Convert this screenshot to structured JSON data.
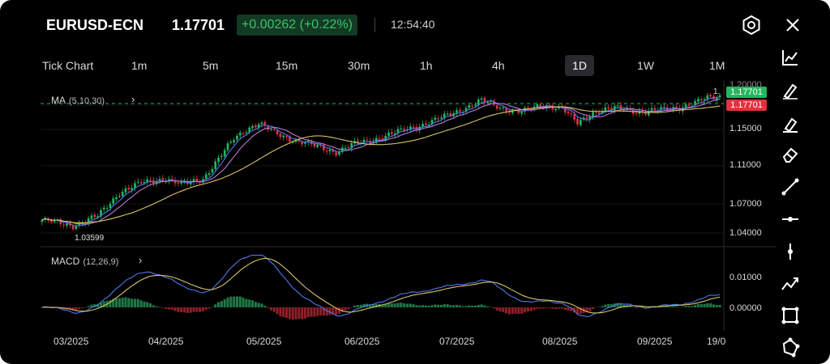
{
  "header": {
    "symbol": "EURUSD-ECN",
    "price": "1.17701",
    "change": "+0.00262 (+0.22%)",
    "time": "12:54:40"
  },
  "timeframes": [
    "Tick Chart",
    "1m",
    "5m",
    "15m",
    "30m",
    "1h",
    "4h",
    "1D",
    "1W",
    "1M"
  ],
  "active_timeframe": "1D",
  "indicators": {
    "ma": {
      "name": "MA",
      "params": "(5,10,30)"
    },
    "macd": {
      "name": "MACD",
      "params": "(12,26,9)"
    }
  },
  "price_axis": {
    "top_cut": "1.20000",
    "ticks": [
      "1.15000",
      "1.11000",
      "1.07000",
      "1.04000"
    ],
    "current_bid": "1.17701",
    "current_ask": "1.17701",
    "high_marker": "1.",
    "low_marker": "1.03599"
  },
  "macd_axis": {
    "ticks": [
      "0.01000",
      "0.00000"
    ]
  },
  "date_labels": [
    "03/2025",
    "04/2025",
    "05/2025",
    "06/2025",
    "07/2025",
    "08/2025",
    "09/2025",
    "19/0"
  ],
  "colors": {
    "up": "#22b85f",
    "down": "#e5303f",
    "ma5": "#4f79e6",
    "ma10": "#b77ad6",
    "ma30": "#d8c366",
    "bg": "#000000",
    "accent_badge": "#133a24"
  },
  "toolbar": [
    "line-chart-icon",
    "pen-icon",
    "highlighter-icon",
    "eraser-icon",
    "trend-line-icon",
    "horizontal-line-icon",
    "vertical-line-icon",
    "polyline-icon",
    "rectangle-icon",
    "polygon-icon"
  ],
  "chart_data": {
    "type": "candlestick",
    "ylim": [
      1.022,
      1.193
    ],
    "anchor_points": [
      [
        0,
        1.046
      ],
      [
        10,
        1.04
      ],
      [
        18,
        1.05
      ],
      [
        25,
        1.075
      ],
      [
        32,
        1.085
      ],
      [
        40,
        1.09
      ],
      [
        45,
        1.083
      ],
      [
        52,
        1.09
      ],
      [
        57,
        1.11
      ],
      [
        62,
        1.132
      ],
      [
        66,
        1.142
      ],
      [
        70,
        1.148
      ],
      [
        75,
        1.138
      ],
      [
        82,
        1.13
      ],
      [
        88,
        1.124
      ],
      [
        95,
        1.118
      ],
      [
        100,
        1.125
      ],
      [
        108,
        1.132
      ],
      [
        116,
        1.14
      ],
      [
        124,
        1.148
      ],
      [
        130,
        1.155
      ],
      [
        137,
        1.165
      ],
      [
        142,
        1.172
      ],
      [
        148,
        1.165
      ],
      [
        155,
        1.16
      ],
      [
        162,
        1.168
      ],
      [
        168,
        1.164
      ],
      [
        173,
        1.148
      ],
      [
        178,
        1.16
      ],
      [
        185,
        1.164
      ],
      [
        195,
        1.16
      ],
      [
        205,
        1.165
      ],
      [
        210,
        1.168
      ],
      [
        215,
        1.175
      ],
      [
        219,
        1.177
      ]
    ]
  }
}
